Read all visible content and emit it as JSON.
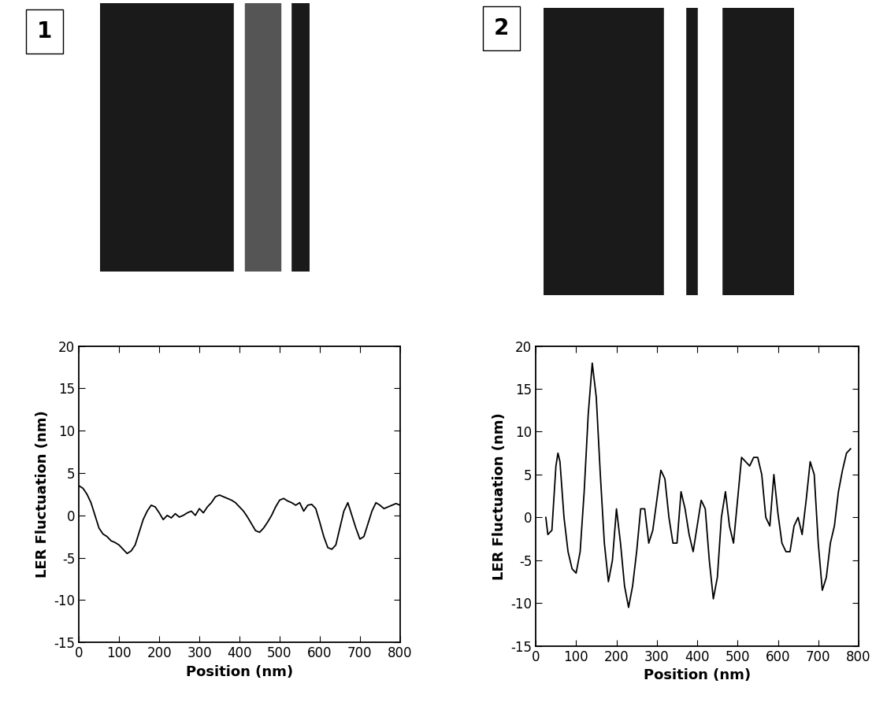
{
  "panel_labels": [
    "1",
    "2"
  ],
  "chart_data": [
    {
      "type": "line",
      "x_label": "Position (nm)",
      "y_label": "LER Fluctuation (nm)",
      "xlim": [
        0,
        800
      ],
      "xticks": [
        0,
        100,
        200,
        300,
        400,
        500,
        600,
        700,
        800
      ],
      "ylim": [
        -15,
        20
      ],
      "yticks": [
        -15,
        -10,
        -5,
        0,
        5,
        10,
        15,
        20
      ],
      "grid": false,
      "color": "#000000",
      "x": [
        0,
        10,
        20,
        30,
        40,
        50,
        60,
        70,
        80,
        90,
        100,
        110,
        120,
        130,
        140,
        150,
        160,
        170,
        180,
        190,
        200,
        210,
        220,
        230,
        240,
        250,
        260,
        270,
        280,
        290,
        300,
        310,
        320,
        330,
        340,
        350,
        360,
        370,
        380,
        390,
        400,
        410,
        420,
        430,
        440,
        450,
        460,
        470,
        480,
        490,
        500,
        510,
        520,
        530,
        540,
        550,
        560,
        570,
        580,
        590,
        600,
        610,
        620,
        630,
        640,
        650,
        660,
        670,
        680,
        690,
        700,
        710,
        720,
        730,
        740,
        750,
        760,
        770,
        780,
        790,
        800
      ],
      "values": [
        3.5,
        3.2,
        2.5,
        1.5,
        0,
        -1.5,
        -2.2,
        -2.5,
        -3,
        -3.2,
        -3.5,
        -4,
        -4.5,
        -4.2,
        -3.5,
        -2,
        -0.5,
        0.5,
        1.2,
        1,
        0.3,
        -0.5,
        0,
        -0.3,
        0.2,
        -0.2,
        0,
        0.3,
        0.5,
        0,
        0.8,
        0.3,
        1,
        1.5,
        2.2,
        2.4,
        2.2,
        2,
        1.8,
        1.5,
        1,
        0.5,
        -0.2,
        -1,
        -1.8,
        -2,
        -1.5,
        -0.8,
        0,
        1,
        1.8,
        2,
        1.7,
        1.5,
        1.2,
        1.5,
        0.5,
        1.2,
        1.3,
        0.8,
        -0.8,
        -2.5,
        -3.8,
        -4,
        -3.5,
        -1.5,
        0.5,
        1.5,
        0,
        -1.5,
        -2.8,
        -2.5,
        -1,
        0.5,
        1.5,
        1.2,
        0.8,
        1,
        1.2,
        1.4,
        1.2
      ]
    },
    {
      "type": "line",
      "x_label": "Position (nm)",
      "y_label": "LER Fluctuation (nm)",
      "xlim": [
        0,
        800
      ],
      "xticks": [
        0,
        100,
        200,
        300,
        400,
        500,
        600,
        700,
        800
      ],
      "ylim": [
        -15,
        20
      ],
      "yticks": [
        -15,
        -10,
        -5,
        0,
        5,
        10,
        15,
        20
      ],
      "grid": false,
      "color": "#000000",
      "x": [
        25,
        30,
        40,
        50,
        55,
        60,
        70,
        80,
        90,
        100,
        110,
        120,
        130,
        140,
        150,
        160,
        170,
        180,
        190,
        200,
        210,
        220,
        230,
        240,
        250,
        260,
        270,
        280,
        290,
        300,
        310,
        320,
        330,
        340,
        350,
        360,
        370,
        380,
        390,
        400,
        410,
        420,
        430,
        440,
        450,
        460,
        470,
        480,
        490,
        500,
        510,
        520,
        530,
        540,
        550,
        560,
        570,
        580,
        590,
        600,
        610,
        620,
        630,
        640,
        650,
        660,
        670,
        680,
        690,
        700,
        710,
        720,
        730,
        740,
        750,
        760,
        770,
        780
      ],
      "values": [
        0,
        -2,
        -1.5,
        6,
        7.5,
        6.5,
        0,
        -4,
        -6,
        -6.5,
        -4,
        3,
        12,
        18,
        14,
        5,
        -3,
        -7.5,
        -5,
        1,
        -3,
        -8,
        -10.5,
        -8,
        -4,
        1,
        1,
        -3,
        -1.5,
        2,
        5.5,
        4.5,
        0,
        -3,
        -3,
        3,
        1,
        -2,
        -4,
        -1,
        2,
        1,
        -5,
        -9.5,
        -7,
        0,
        3,
        -1,
        -3,
        2,
        7,
        6.5,
        6,
        7,
        7,
        5,
        0,
        -1,
        5,
        0.5,
        -3,
        -4,
        -4,
        -1,
        0,
        -2,
        2,
        6.5,
        5,
        -3,
        -8.5,
        -7,
        -3,
        -1,
        3,
        5.5,
        7.5,
        8
      ]
    }
  ]
}
